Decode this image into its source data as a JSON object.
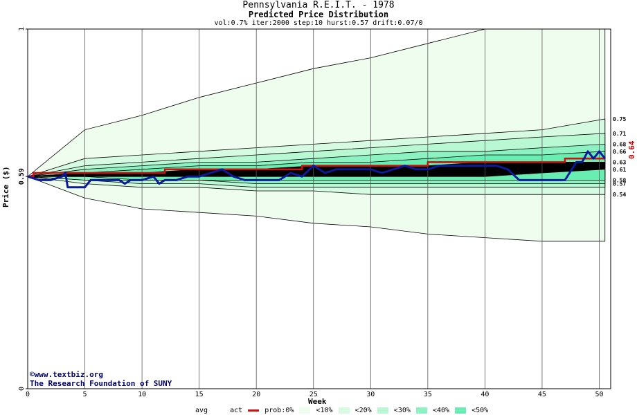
{
  "colors": {
    "act": "#cc1111",
    "prob": "#0a1a9a",
    "bands": [
      "#ffffff",
      "#effdef",
      "#d6fbe2",
      "#b8f8d3",
      "#8cf2c1",
      "#68eeb0"
    ],
    "grid": "#555555"
  },
  "credit": {
    "line1": "©www.textbiz.org",
    "line2": "The Research Foundation of SUNY"
  },
  "chart_data": {
    "type": "line",
    "title": "Pennsylvania R.E.I.T. - 1978",
    "subtitle": "Predicted Price Distribution",
    "params": "vol:0.7% iter:2000 step:10 hurst:0.57 drift:0.07/0",
    "xlabel": "Week",
    "ylabel": "Price ($)",
    "xlim": [
      0,
      51
    ],
    "ylim": [
      0,
      1
    ],
    "xticks": [
      0,
      5,
      10,
      15,
      20,
      25,
      30,
      35,
      40,
      45,
      50
    ],
    "yticks": [
      {
        "value": 0,
        "label": "0"
      },
      {
        "value": 0.59,
        "label": "0.59"
      },
      {
        "value": 1,
        "label": "1"
      }
    ],
    "start_price": 0.59,
    "right_labels": [
      {
        "value": 0.75,
        "label": "0.75"
      },
      {
        "value": 0.71,
        "label": "0.71"
      },
      {
        "value": 0.68,
        "label": "0.68"
      },
      {
        "value": 0.66,
        "label": "0.66"
      },
      {
        "value": 0.63,
        "label": "0.63"
      },
      {
        "value": 0.61,
        "label": "0.61"
      },
      {
        "value": 0.58,
        "label": "0.58"
      },
      {
        "value": 0.57,
        "label": "0.57"
      },
      {
        "value": 0.54,
        "label": "0.54"
      }
    ],
    "actual_last_label": "0.64",
    "distribution_bands": [
      {
        "level": "0%",
        "weeks": [
          0,
          5,
          10,
          15,
          20,
          25,
          30,
          35,
          40,
          45,
          50.5
        ],
        "upper": [
          0.59,
          0.72,
          0.76,
          0.81,
          0.85,
          0.89,
          0.92,
          0.96,
          1.0,
          1.0,
          1.0
        ],
        "lower": [
          0.59,
          0.53,
          0.5,
          0.49,
          0.48,
          0.46,
          0.45,
          0.43,
          0.42,
          0.41,
          0.41
        ]
      },
      {
        "level": "<10%",
        "weeks": [
          0,
          5,
          10,
          15,
          20,
          25,
          30,
          35,
          40,
          45,
          50.5
        ],
        "upper": [
          0.59,
          0.64,
          0.65,
          0.66,
          0.67,
          0.68,
          0.69,
          0.7,
          0.71,
          0.72,
          0.75
        ],
        "lower": [
          0.59,
          0.57,
          0.56,
          0.56,
          0.55,
          0.55,
          0.54,
          0.54,
          0.54,
          0.54,
          0.54
        ]
      },
      {
        "level": "<20%",
        "weeks": [
          0,
          5,
          10,
          15,
          20,
          25,
          30,
          35,
          40,
          45,
          50.5
        ],
        "upper": [
          0.59,
          0.62,
          0.63,
          0.64,
          0.65,
          0.66,
          0.67,
          0.68,
          0.69,
          0.7,
          0.71
        ],
        "lower": [
          0.59,
          0.58,
          0.57,
          0.57,
          0.56,
          0.56,
          0.56,
          0.56,
          0.56,
          0.56,
          0.56
        ]
      },
      {
        "level": "<30%",
        "weeks": [
          0,
          5,
          10,
          15,
          20,
          25,
          30,
          35,
          40,
          45,
          50.5
        ],
        "upper": [
          0.59,
          0.61,
          0.62,
          0.63,
          0.63,
          0.64,
          0.65,
          0.66,
          0.66,
          0.67,
          0.68
        ],
        "lower": [
          0.59,
          0.58,
          0.58,
          0.58,
          0.57,
          0.57,
          0.57,
          0.57,
          0.57,
          0.57,
          0.57
        ]
      },
      {
        "level": "<40%",
        "weeks": [
          0,
          5,
          10,
          15,
          20,
          25,
          30,
          35,
          40,
          45,
          50.5
        ],
        "upper": [
          0.59,
          0.6,
          0.61,
          0.62,
          0.62,
          0.63,
          0.63,
          0.64,
          0.65,
          0.65,
          0.66
        ],
        "lower": [
          0.59,
          0.59,
          0.58,
          0.58,
          0.58,
          0.58,
          0.58,
          0.58,
          0.58,
          0.58,
          0.58
        ]
      },
      {
        "level": "<50%",
        "weeks": [
          0,
          5,
          10,
          15,
          20,
          25,
          30,
          35,
          40,
          45,
          50.5
        ],
        "upper": [
          0.59,
          0.6,
          0.6,
          0.61,
          0.61,
          0.62,
          0.62,
          0.62,
          0.63,
          0.63,
          0.63
        ],
        "lower": [
          0.59,
          0.59,
          0.59,
          0.59,
          0.59,
          0.59,
          0.59,
          0.59,
          0.59,
          0.6,
          0.61
        ]
      }
    ],
    "series": [
      {
        "name": "act",
        "x": [
          0,
          0.5,
          11.5,
          12,
          20.5,
          21,
          23.5,
          24,
          34.5,
          35,
          46,
          47,
          50.5
        ],
        "y": [
          0.59,
          0.6,
          0.6,
          0.61,
          0.61,
          0.61,
          0.61,
          0.62,
          0.62,
          0.63,
          0.63,
          0.64,
          0.64
        ]
      },
      {
        "name": "prob",
        "x": [
          0,
          1,
          2,
          3,
          3.3,
          3.5,
          4,
          5,
          5.5,
          6,
          7,
          8,
          8.5,
          9,
          10,
          11,
          11.5,
          12,
          13,
          14,
          15,
          16,
          17,
          18,
          19,
          20,
          21,
          22,
          23,
          24,
          25,
          26,
          27,
          28,
          29,
          30,
          31,
          32,
          33,
          34,
          35,
          36,
          37,
          38,
          39,
          40,
          41,
          42,
          43,
          44,
          45,
          46,
          47,
          48,
          48.5,
          49,
          49.5,
          50,
          50.5
        ],
        "y": [
          0.59,
          0.58,
          0.58,
          0.59,
          0.6,
          0.56,
          0.56,
          0.56,
          0.58,
          0.58,
          0.58,
          0.58,
          0.57,
          0.58,
          0.58,
          0.59,
          0.57,
          0.58,
          0.58,
          0.59,
          0.59,
          0.6,
          0.61,
          0.59,
          0.58,
          0.58,
          0.58,
          0.58,
          0.6,
          0.59,
          0.62,
          0.6,
          0.61,
          0.61,
          0.61,
          0.61,
          0.6,
          0.61,
          0.62,
          0.61,
          0.61,
          0.62,
          0.62,
          0.62,
          0.62,
          0.62,
          0.62,
          0.61,
          0.58,
          0.58,
          0.58,
          0.58,
          0.58,
          0.63,
          0.63,
          0.66,
          0.64,
          0.66,
          0.64
        ]
      }
    ],
    "legend": {
      "items": [
        "avg",
        "act",
        "prob:0%",
        "<10%",
        "<20%",
        "<30%",
        "<40%",
        "<50%"
      ],
      "placement": "bottom"
    },
    "grid": true
  }
}
